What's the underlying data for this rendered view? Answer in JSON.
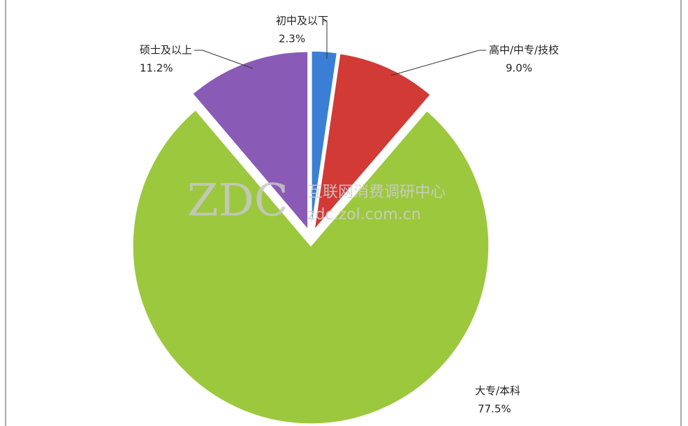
{
  "chart_data": {
    "type": "pie",
    "categories": [
      "初中及以下",
      "高中/中专/技校",
      "大专/本科",
      "硕士及以上"
    ],
    "values": [
      2.3,
      9.0,
      77.5,
      11.2
    ],
    "value_labels": [
      "2.3%",
      "9.0%",
      "77.5%",
      "11.2%"
    ],
    "colors": [
      "#3a7fd5",
      "#d23a36",
      "#9cc83e",
      "#8a5bb6"
    ],
    "watermark": {
      "logo": "ZDC",
      "name": "互联网消费调研中心",
      "url": "zdc.zol.com.cn"
    }
  }
}
